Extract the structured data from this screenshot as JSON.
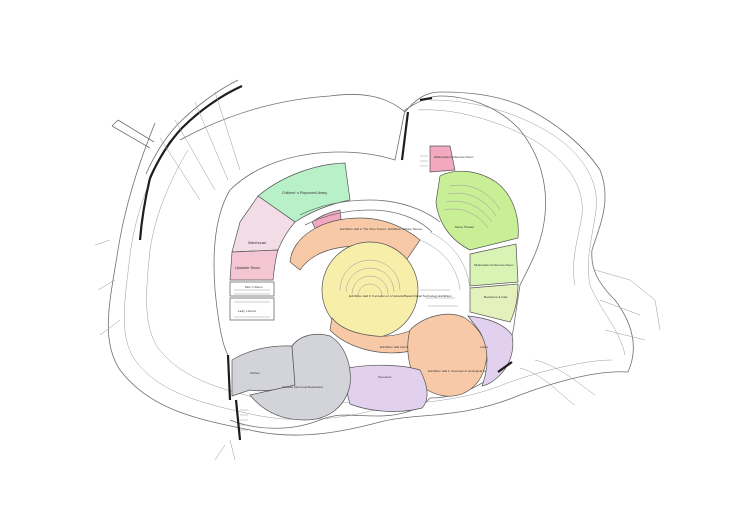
{
  "colors": {
    "childrens": "#b8f0c8",
    "warehouse": "#f2dde6",
    "pink": "#f4c6d4",
    "pink_strong": "#f2a8bf",
    "core": "#f7eeaa",
    "orange": "#f7c9a6",
    "lavender": "#e1d1ee",
    "gray": "#d3d3da",
    "green": "#c8ee96",
    "green2": "#d8f3b4",
    "yellow_green": "#e5f1bd",
    "wall": "#1d1d1d",
    "line": "#6f6f6f"
  },
  "rooms": {
    "childrens": "Children' s Playroom/Library",
    "warehouse": "Warehouse",
    "uploader": "Uploader Room",
    "men": "Men' s Room",
    "lady": "Lady' s Room",
    "hall2": "Exhibition Hall 2: The Time Tunnel - Exhibition of Rare Stones",
    "hall3": "Exhibition Hall 3: Formation of a Volcanic/Basalt Digital Technology Exhibition",
    "hall4": "Exhibition Hall 4 Exhibition of Basalt",
    "hall1": "Exhibition Hall 1: Overview of Geological History",
    "lobby": "Lobby",
    "souvenirs": "Souvenirs",
    "kitchen": "Kitchen",
    "restaurant": "Chinese Fast Food Restaurant",
    "multimedia_top": "Multimedia Conference Room",
    "movie": "Movie Theater",
    "multimedia_right": "Multimedia Conference Room",
    "bookstore": "Bookstore & Cafe"
  }
}
